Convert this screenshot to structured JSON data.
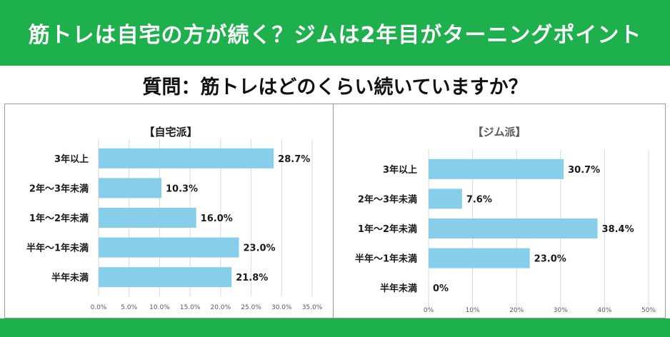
{
  "header": {
    "title": "筋トレは自宅の方が続く？ジムは2年目がターニングポイント"
  },
  "question": "質問：筋トレはどのくらい続いていますか？",
  "colors": {
    "banner": "#1db04c",
    "bar": "#87ceeb",
    "gridline": "#d9d9d9"
  },
  "chart_data": [
    {
      "type": "bar",
      "orientation": "horizontal",
      "title": "【自宅派】",
      "categories": [
        "3年以上",
        "2年～3年未満",
        "1年～2年未満",
        "半年～1年未満",
        "半年未満"
      ],
      "values": [
        28.7,
        10.3,
        16.0,
        23.0,
        21.8
      ],
      "value_labels": [
        "28.7%",
        "10.3%",
        "16.0%",
        "23.0%",
        "21.8%"
      ],
      "xlim": [
        0,
        35
      ],
      "xticks": [
        0,
        5,
        10,
        15,
        20,
        25,
        30,
        35
      ],
      "xtick_labels": [
        "0.0%",
        "5.0%",
        "10.0%",
        "15.0%",
        "20.0%",
        "25.0%",
        "30.0%",
        "35.0%"
      ],
      "grid": true
    },
    {
      "type": "bar",
      "orientation": "horizontal",
      "title": "【ジム派】",
      "categories": [
        "3年以上",
        "2年～3年未満",
        "1年～2年未満",
        "半年～1年未満",
        "半年未満"
      ],
      "values": [
        30.7,
        7.6,
        38.4,
        23.0,
        0
      ],
      "value_labels": [
        "30.7%",
        "7.6%",
        "38.4%",
        "23.0%",
        "0%"
      ],
      "xlim": [
        0,
        50
      ],
      "xticks": [
        0,
        10,
        20,
        30,
        40,
        50
      ],
      "xtick_labels": [
        "0%",
        "10%",
        "20%",
        "30%",
        "40%",
        "50%"
      ],
      "grid": true
    }
  ]
}
